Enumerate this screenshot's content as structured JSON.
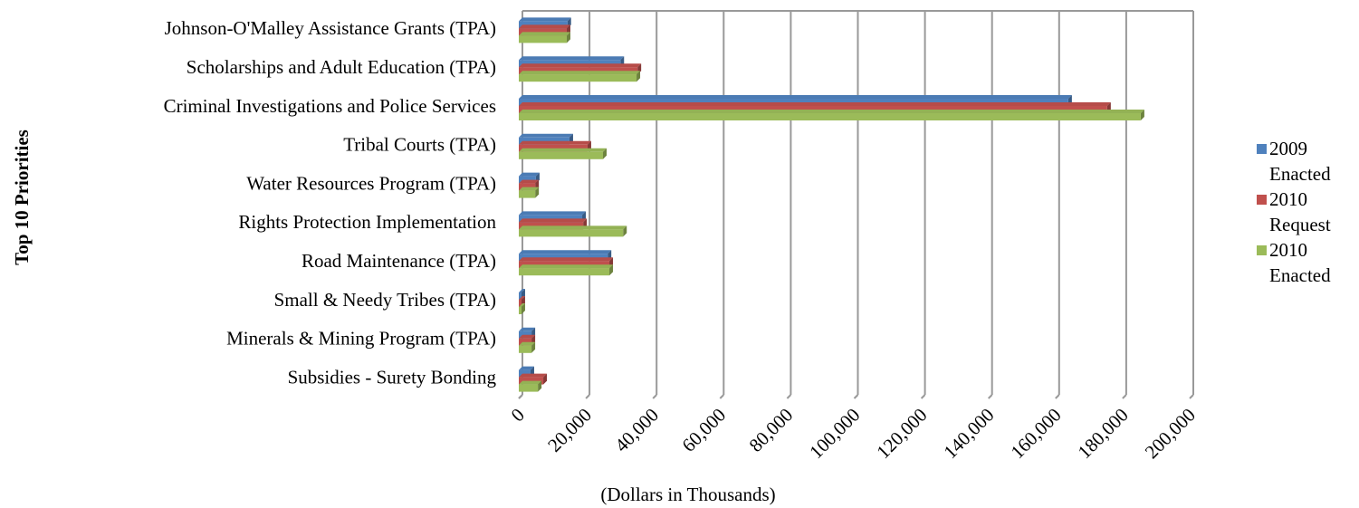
{
  "chart_data": {
    "type": "bar3d_horizontal",
    "y_axis_label": "Top 10 Priorities",
    "x_axis_label": "(Dollars in Thousands)",
    "categories": [
      "Johnson-O'Malley Assistance Grants (TPA)",
      "Scholarships and Adult Education (TPA)",
      "Criminal Investigations and Police Services",
      "Tribal Courts (TPA)",
      "Water Resources Program (TPA)",
      "Rights Protection Implementation",
      "Road Maintenance (TPA)",
      "Small & Needy Tribes (TPA)",
      "Minerals & Mining Program (TPA)",
      "Subsidies - Surety Bonding"
    ],
    "series": [
      {
        "name": "2009 Enacted",
        "color": "#4f81bd",
        "values": [
          14500,
          30300,
          163800,
          15100,
          5100,
          18900,
          26500,
          800,
          3800,
          3500
        ]
      },
      {
        "name": "2010 Request",
        "color": "#c0504d",
        "values": [
          14300,
          35400,
          175400,
          20500,
          4900,
          19200,
          27000,
          800,
          3800,
          7300
        ]
      },
      {
        "name": "2010 Enacted",
        "color": "#9bbb59",
        "values": [
          14300,
          35100,
          185400,
          25100,
          4900,
          31100,
          27000,
          800,
          3800,
          5700
        ]
      }
    ],
    "xlim": [
      0,
      200000
    ],
    "xticks": [
      0,
      {
        "value": 20000,
        "label": "20,000"
      },
      {
        "value": 40000,
        "label": "40,000"
      },
      {
        "value": 60000,
        "label": "60,000"
      },
      {
        "value": 80000,
        "label": "80,000"
      },
      {
        "value": 100000,
        "label": "100,000"
      },
      {
        "value": 120000,
        "label": "120,000"
      },
      {
        "value": 140000,
        "label": "140,000"
      },
      {
        "value": 160000,
        "label": "160,000"
      },
      {
        "value": 180000,
        "label": "180,000"
      },
      {
        "value": 200000,
        "label": "200,000"
      }
    ],
    "grid": true,
    "legend": "right"
  }
}
